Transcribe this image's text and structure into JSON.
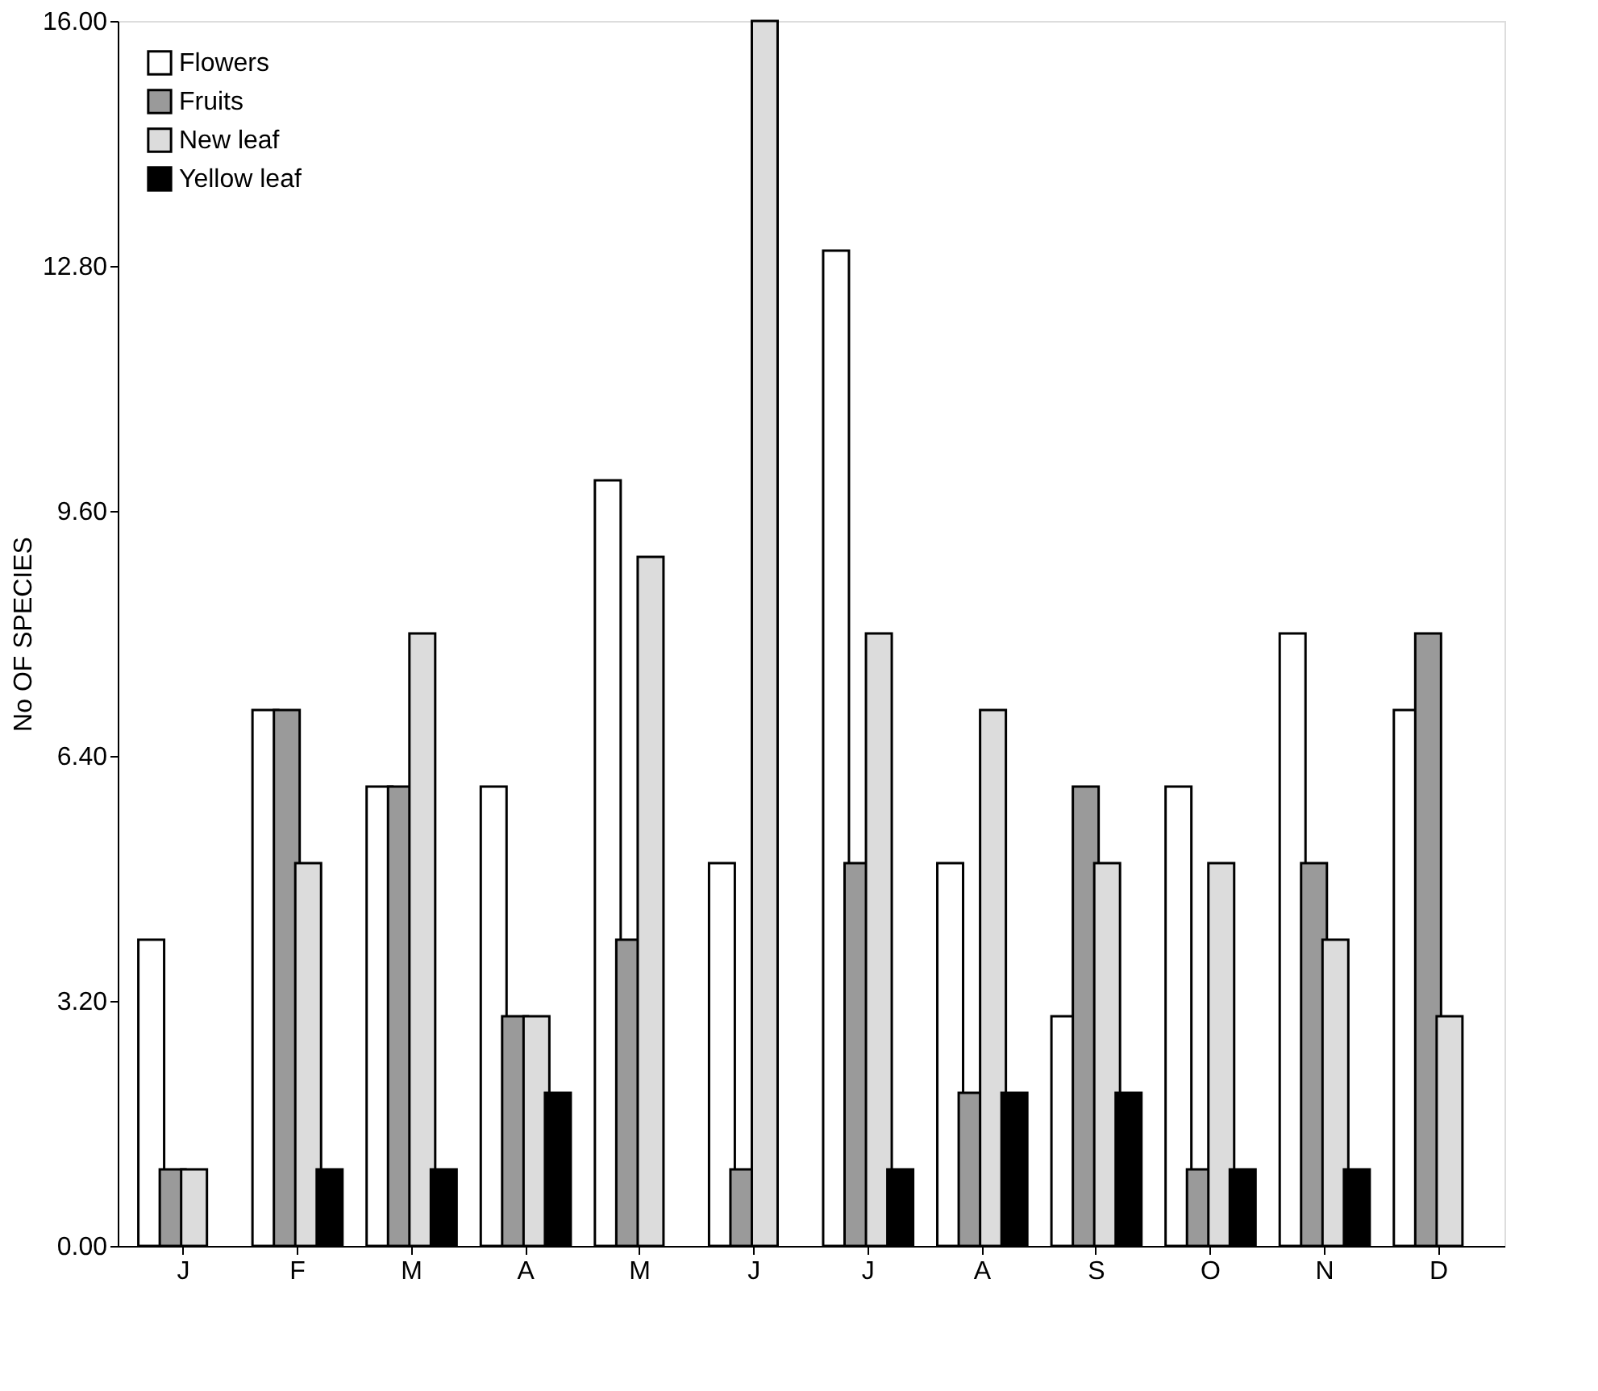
{
  "chart_data": {
    "type": "bar",
    "ylabel": "No OF SPECIES",
    "categories": [
      "J",
      "F",
      "M",
      "A",
      "M",
      "J",
      "J",
      "A",
      "S",
      "O",
      "N",
      "D"
    ],
    "series": [
      {
        "name": "Flowers",
        "color": "#ffffff",
        "values": [
          4,
          7,
          6,
          6,
          10,
          5,
          13,
          5,
          3,
          6,
          8,
          7
        ]
      },
      {
        "name": "Fruits",
        "color": "#9a9a9a",
        "values": [
          1,
          7,
          6,
          3,
          4,
          1,
          5,
          2,
          6,
          1,
          5,
          8
        ]
      },
      {
        "name": "New leaf",
        "color": "#dcdcdc",
        "values": [
          1,
          5,
          8,
          3,
          9,
          16,
          8,
          7,
          5,
          5,
          4,
          3
        ]
      },
      {
        "name": "Yellow leaf",
        "color": "#000000",
        "values": [
          null,
          1,
          1,
          2,
          null,
          null,
          1,
          2,
          2,
          1,
          1,
          null
        ]
      }
    ],
    "ylim": [
      0,
      16
    ],
    "yticks": [
      {
        "value": 0,
        "label": "0.00"
      },
      {
        "value": 3.2,
        "label": "3.20"
      },
      {
        "value": 6.4,
        "label": "6.40"
      },
      {
        "value": 9.6,
        "label": "9.60"
      },
      {
        "value": 12.8,
        "label": "12.80"
      },
      {
        "value": 16,
        "label": "16.00"
      }
    ],
    "grid": false,
    "legend": "top left"
  }
}
